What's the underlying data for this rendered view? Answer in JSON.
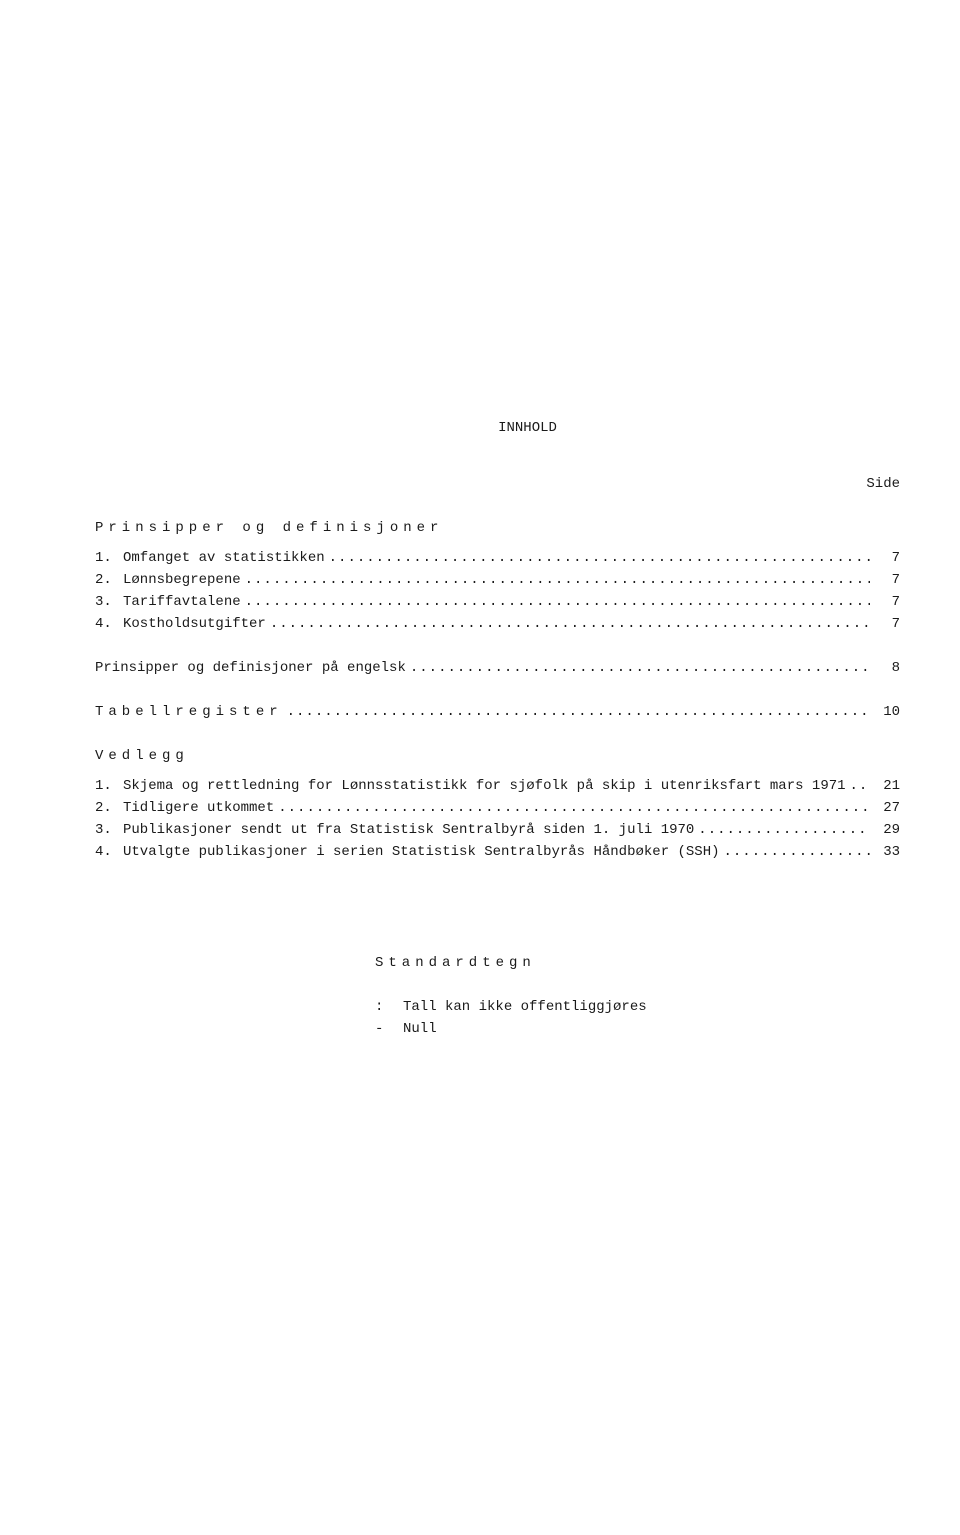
{
  "title": "INNHOLD",
  "side_label": "Side",
  "sections": {
    "prinsipper_heading": "Prinsipper  og  definisjoner",
    "prinsipper_items": [
      {
        "num": "1.",
        "text": "Omfanget av statistikken",
        "page": "7"
      },
      {
        "num": "2.",
        "text": "Lønnsbegrepene",
        "page": "7"
      },
      {
        "num": "3.",
        "text": "Tariffavtalene",
        "page": "7"
      },
      {
        "num": "4.",
        "text": "Kostholdsutgifter",
        "page": "7"
      }
    ],
    "english_line": {
      "text": "Prinsipper og definisjoner på engelsk",
      "page": "8"
    },
    "tabellregister": {
      "text": "Tabellregister",
      "page": "10"
    },
    "vedlegg_heading": "Vedlegg",
    "vedlegg_items": [
      {
        "num": "1.",
        "text": "Skjema og rettledning for Lønnsstatistikk for sjøfolk på skip i utenriksfart mars 1971",
        "page": "21"
      },
      {
        "num": "2.",
        "text": "Tidligere utkommet",
        "page": "27"
      },
      {
        "num": "3.",
        "text": "Publikasjoner sendt ut fra Statistisk Sentralbyrå siden 1. juli 1970",
        "page": "29"
      },
      {
        "num": "4.",
        "text": "Utvalgte publikasjoner i serien Statistisk Sentralbyrås Håndbøker (SSH)",
        "page": "33"
      }
    ]
  },
  "standardtegn": {
    "title": "Standardtegn",
    "items": [
      {
        "symbol": ":",
        "text": "Tall kan ikke offentliggjøres"
      },
      {
        "symbol": "-",
        "text": "Null"
      }
    ]
  },
  "dots": "...................................................................................................."
}
